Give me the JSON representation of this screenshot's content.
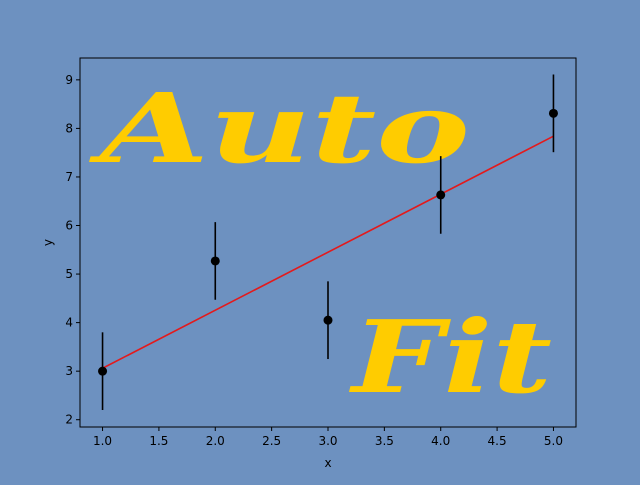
{
  "chart_data": {
    "type": "scatter",
    "xlabel": "x",
    "ylabel": "y",
    "xlim": [
      0.8,
      5.2
    ],
    "ylim": [
      1.85,
      9.45
    ],
    "xticks": [
      1.0,
      1.5,
      2.0,
      2.5,
      3.0,
      3.5,
      4.0,
      4.5,
      5.0
    ],
    "xtick_labels": [
      "1.0",
      "1.5",
      "2.0",
      "2.5",
      "3.0",
      "3.5",
      "4.0",
      "4.5",
      "5.0"
    ],
    "yticks": [
      2,
      3,
      4,
      5,
      6,
      7,
      8,
      9
    ],
    "ytick_labels": [
      "2",
      "3",
      "4",
      "5",
      "6",
      "7",
      "8",
      "9"
    ],
    "grid": false,
    "series": [
      {
        "kind": "errorbar",
        "x": [
          1,
          2,
          3,
          4,
          5
        ],
        "y": [
          3.0,
          5.27,
          4.05,
          6.63,
          8.31
        ],
        "yerr": [
          0.8,
          0.8,
          0.8,
          0.8,
          0.8
        ],
        "color": "#000000",
        "marker": "circle"
      },
      {
        "kind": "line",
        "x": [
          1,
          5
        ],
        "y": [
          3.06,
          7.84
        ],
        "color": "#e31a1c"
      }
    ],
    "annotations": [
      {
        "text": "Auto",
        "color": "#ffcc00"
      },
      {
        "text": "Fit",
        "color": "#ffcc00"
      }
    ]
  },
  "colors": {
    "figure_background": "#6d91c0",
    "axes_background": "#6d91c0",
    "fit_line": "#e31a1c",
    "points": "#000000",
    "watermark": "#ffcc00"
  }
}
